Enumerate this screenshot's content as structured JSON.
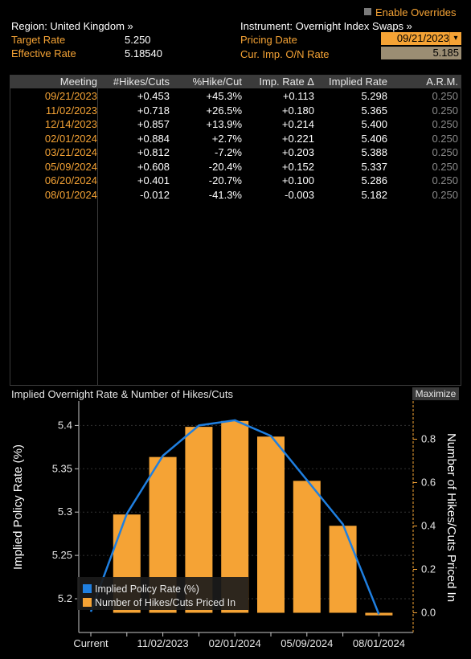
{
  "header": {
    "region_label": "Region: United Kingdom »",
    "instrument_label": "Instrument: Overnight Index Swaps »",
    "enable_overrides": "Enable Overrides",
    "target_rate_label": "Target Rate",
    "target_rate_value": "5.250",
    "effective_rate_label": "Effective Rate",
    "effective_rate_value": "5.18540",
    "pricing_date_label": "Pricing Date",
    "pricing_date_value": "09/21/2023",
    "cur_imp_label": "Cur. Imp. O/N Rate",
    "cur_imp_value": "5.185"
  },
  "table": {
    "columns": [
      "Meeting",
      "#Hikes/Cuts",
      "%Hike/Cut",
      "Imp. Rate Δ",
      "Implied Rate",
      "A.R.M."
    ],
    "rows": [
      [
        "09/21/2023",
        "+0.453",
        "+45.3%",
        "+0.113",
        "5.298",
        "0.250"
      ],
      [
        "11/02/2023",
        "+0.718",
        "+26.5%",
        "+0.180",
        "5.365",
        "0.250"
      ],
      [
        "12/14/2023",
        "+0.857",
        "+13.9%",
        "+0.214",
        "5.400",
        "0.250"
      ],
      [
        "02/01/2024",
        "+0.884",
        "+2.7%",
        "+0.221",
        "5.406",
        "0.250"
      ],
      [
        "03/21/2024",
        "+0.812",
        "-7.2%",
        "+0.203",
        "5.388",
        "0.250"
      ],
      [
        "05/09/2024",
        "+0.608",
        "-20.4%",
        "+0.152",
        "5.337",
        "0.250"
      ],
      [
        "06/20/2024",
        "+0.401",
        "-20.7%",
        "+0.100",
        "5.286",
        "0.250"
      ],
      [
        "08/01/2024",
        "-0.012",
        "-41.3%",
        "-0.003",
        "5.182",
        "0.250"
      ]
    ]
  },
  "chart_title": "Implied Overnight Rate & Number of Hikes/Cuts",
  "maximize_label": "Maximize",
  "colors": {
    "accent_orange": "#f5a335",
    "line_blue": "#1f7fe0",
    "background": "#000000"
  },
  "chart_data": {
    "type": "bar",
    "categories": [
      "Current",
      "09/21/2023",
      "11/02/2023",
      "12/14/2023",
      "02/01/2024",
      "03/21/2024",
      "05/09/2024",
      "06/20/2024",
      "08/01/2024"
    ],
    "x_tick_labels": [
      "Current",
      "11/02/2023",
      "02/01/2024",
      "05/09/2024",
      "08/01/2024"
    ],
    "series": [
      {
        "name": "Implied Policy Rate (%)",
        "type": "line",
        "axis": "left",
        "color": "#1f7fe0",
        "values": [
          5.185,
          5.298,
          5.365,
          5.4,
          5.406,
          5.388,
          5.337,
          5.286,
          5.182
        ]
      },
      {
        "name": "Number of Hikes/Cuts Priced In",
        "type": "bar",
        "axis": "right",
        "color": "#f5a335",
        "values": [
          null,
          0.453,
          0.718,
          0.857,
          0.884,
          0.812,
          0.608,
          0.401,
          -0.012
        ]
      }
    ],
    "ylabel": "Implied Policy Rate (%)",
    "ylabel_right": "Number of Hikes/Cuts Priced In",
    "ylim": [
      5.17,
      5.43
    ],
    "ylim_right": [
      -0.05,
      0.95
    ],
    "y_ticks": [
      "5.2",
      "5.25",
      "5.3",
      "5.35",
      "5.4"
    ],
    "y_right_ticks": [
      "0.0",
      "0.2",
      "0.4",
      "0.6",
      "0.8"
    ],
    "legend_position": "bottom-left"
  }
}
